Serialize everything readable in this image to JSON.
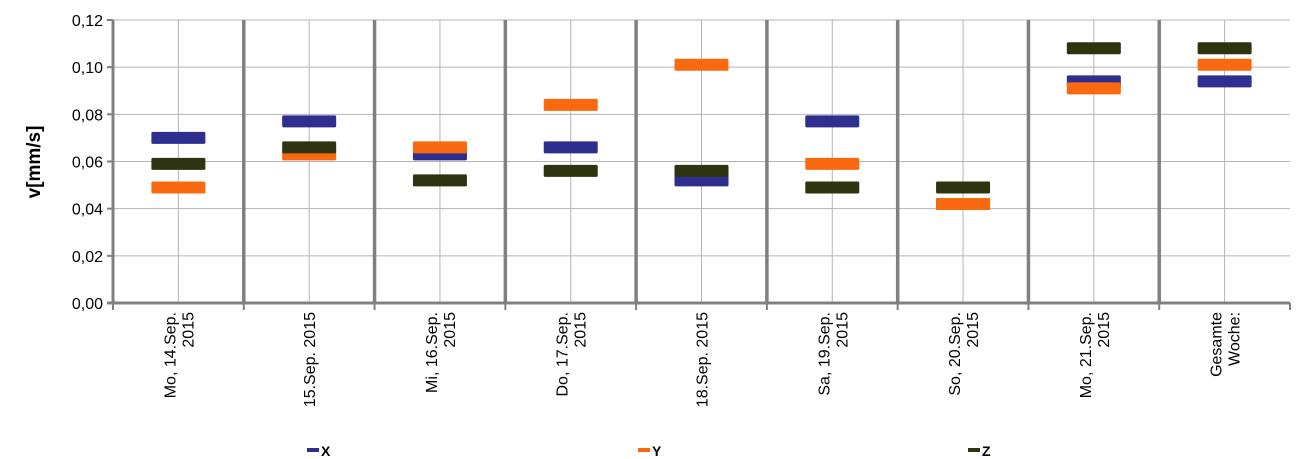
{
  "chart_data": {
    "type": "scatter",
    "marker": "dash",
    "title": "",
    "xlabel": "",
    "ylabel": "v[mm/s]",
    "ylim": [
      0,
      0.12
    ],
    "yticks": [
      "0,00",
      "0,02",
      "0,04",
      "0,06",
      "0,08",
      "0,10",
      "0,12"
    ],
    "grid": true,
    "legend_position": "bottom",
    "categories": [
      [
        "Mo, 14.Sep.",
        "2015"
      ],
      [
        "15.Sep. 2015"
      ],
      [
        "Mi, 16.Sep.",
        "2015"
      ],
      [
        "Do, 17.Sep.",
        "2015"
      ],
      [
        "18.Sep. 2015"
      ],
      [
        "Sa, 19.Sep.",
        "2015"
      ],
      [
        "So, 20.Sep.",
        "2015"
      ],
      [
        "Mo, 21.Sep.",
        "2015"
      ],
      [
        "Gesamte",
        "Woche:"
      ]
    ],
    "series": [
      {
        "name": "X",
        "color": "#2E2E8E",
        "values": [
          0.07,
          0.077,
          0.063,
          0.066,
          0.052,
          0.077,
          0.042,
          0.094,
          0.094
        ]
      },
      {
        "name": "Y",
        "color": "#F96A10",
        "values": [
          0.049,
          0.063,
          0.066,
          0.084,
          0.101,
          0.059,
          0.042,
          0.091,
          0.101
        ]
      },
      {
        "name": "Z",
        "color": "#2E3410",
        "values": [
          0.059,
          0.066,
          0.052,
          0.056,
          0.056,
          0.049,
          0.049,
          0.108,
          0.108
        ]
      }
    ]
  }
}
